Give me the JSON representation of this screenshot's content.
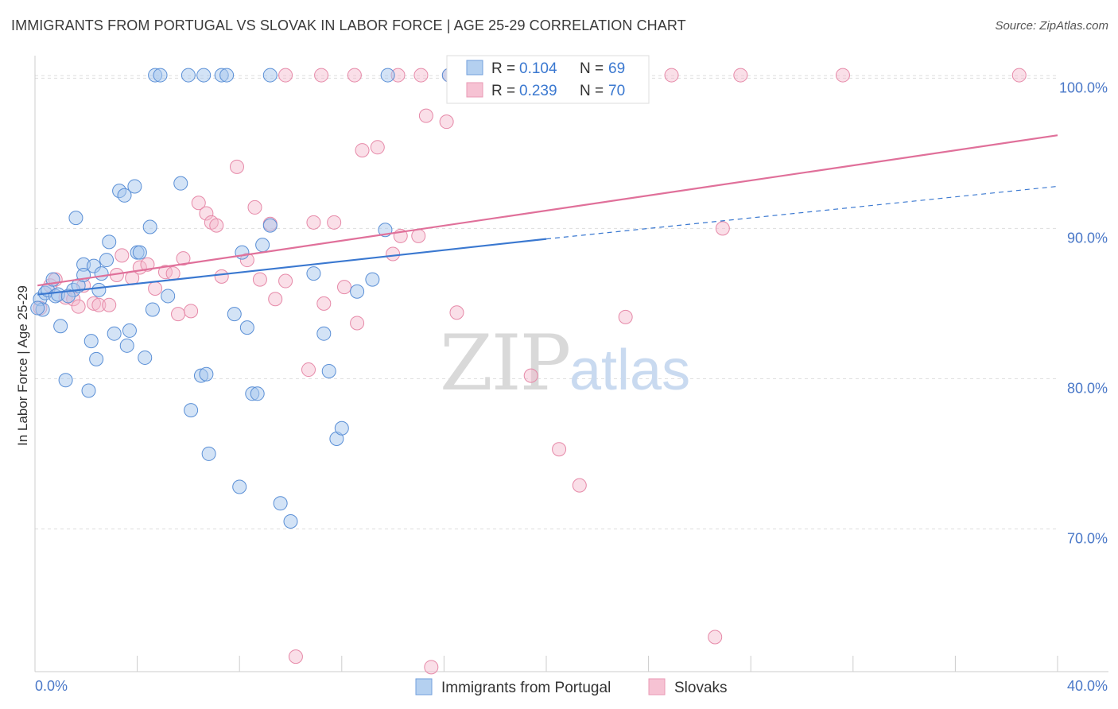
{
  "header": {
    "title": "IMMIGRANTS FROM PORTUGAL VS SLOVAK IN LABOR FORCE | AGE 25-29 CORRELATION CHART",
    "source": "Source: ZipAtlas.com"
  },
  "watermark": {
    "zip": "ZIP",
    "atlas": "atlas"
  },
  "colors": {
    "blue_fill": "#a8c8ee",
    "blue_stroke": "#5a8fd6",
    "blue_line": "#3a78d0",
    "pink_fill": "#f5b8cc",
    "pink_stroke": "#e689a8",
    "pink_line": "#e0709a",
    "grid": "#dddddd",
    "tick_text": "#4a78c8"
  },
  "legend": {
    "r_label": "R =",
    "n_label": "N =",
    "entries": [
      {
        "r": "0.104",
        "n": "69"
      },
      {
        "r": "0.239",
        "n": "70"
      }
    ]
  },
  "chart_data": {
    "type": "scatter",
    "title": "IMMIGRANTS FROM PORTUGAL VS SLOVAK IN LABOR FORCE | AGE 25-29 CORRELATION CHART",
    "xlabel": "",
    "ylabel": "In Labor Force | Age 25-29",
    "xlim": [
      0,
      40
    ],
    "ylim": [
      60.5,
      101.5
    ],
    "x_tick_labels": [
      "0.0%",
      "40.0%"
    ],
    "y_ticks": [
      70,
      80,
      90,
      100
    ],
    "y_tick_labels": [
      "70.0%",
      "80.0%",
      "90.0%",
      "100.0%"
    ],
    "grid": true,
    "legend_position": "top-center",
    "series": [
      {
        "name": "Immigrants from Portugal",
        "r": 0.104,
        "n": 69,
        "trend": {
          "x0": 0.1,
          "y0": 85.6,
          "x1": 20.0,
          "y1": 89.3,
          "dash_to_x": 40.0,
          "dash_to_y": 92.8
        },
        "points": [
          [
            0.2,
            85.3
          ],
          [
            0.3,
            84.6
          ],
          [
            0.4,
            85.7
          ],
          [
            0.5,
            85.9
          ],
          [
            0.7,
            86.6
          ],
          [
            0.8,
            85.5
          ],
          [
            0.9,
            85.6
          ],
          [
            1.0,
            83.5
          ],
          [
            1.2,
            79.9
          ],
          [
            1.5,
            85.9
          ],
          [
            1.3,
            85.5
          ],
          [
            1.6,
            90.7
          ],
          [
            1.7,
            86.2
          ],
          [
            1.9,
            87.6
          ],
          [
            1.9,
            86.9
          ],
          [
            2.1,
            79.2
          ],
          [
            2.2,
            82.5
          ],
          [
            2.3,
            87.5
          ],
          [
            2.4,
            81.3
          ],
          [
            2.5,
            85.9
          ],
          [
            2.6,
            87.0
          ],
          [
            2.8,
            87.9
          ],
          [
            2.9,
            89.1
          ],
          [
            3.1,
            83.0
          ],
          [
            3.3,
            92.5
          ],
          [
            3.5,
            92.2
          ],
          [
            3.6,
            82.2
          ],
          [
            3.7,
            83.2
          ],
          [
            3.9,
            92.8
          ],
          [
            4.0,
            88.4
          ],
          [
            4.1,
            88.4
          ],
          [
            4.3,
            81.4
          ],
          [
            4.5,
            90.1
          ],
          [
            4.6,
            84.6
          ],
          [
            4.7,
            100.2
          ],
          [
            4.9,
            100.2
          ],
          [
            5.2,
            85.5
          ],
          [
            5.7,
            93.0
          ],
          [
            6.1,
            77.9
          ],
          [
            6.0,
            100.2
          ],
          [
            6.5,
            80.2
          ],
          [
            6.7,
            80.3
          ],
          [
            6.8,
            75.0
          ],
          [
            6.6,
            100.2
          ],
          [
            7.3,
            100.2
          ],
          [
            7.5,
            100.2
          ],
          [
            7.8,
            84.3
          ],
          [
            8.0,
            72.8
          ],
          [
            8.1,
            88.4
          ],
          [
            8.3,
            83.4
          ],
          [
            8.5,
            79.0
          ],
          [
            8.7,
            79.0
          ],
          [
            8.9,
            88.9
          ],
          [
            9.2,
            90.2
          ],
          [
            9.2,
            100.2
          ],
          [
            9.6,
            71.7
          ],
          [
            10.0,
            70.5
          ],
          [
            10.9,
            87.0
          ],
          [
            11.3,
            83.0
          ],
          [
            11.5,
            80.5
          ],
          [
            11.8,
            76.0
          ],
          [
            12.0,
            76.7
          ],
          [
            12.6,
            85.8
          ],
          [
            13.2,
            86.6
          ],
          [
            13.7,
            89.9
          ],
          [
            13.8,
            100.2
          ],
          [
            16.2,
            100.2
          ],
          [
            17.0,
            100.2
          ],
          [
            0.1,
            84.7
          ]
        ]
      },
      {
        "name": "Slovaks",
        "r": 0.239,
        "n": 70,
        "trend": {
          "x0": 0.1,
          "y0": 86.2,
          "x1": 40.0,
          "y1": 96.2
        },
        "points": [
          [
            0.2,
            84.7
          ],
          [
            0.6,
            86.2
          ],
          [
            0.8,
            86.6
          ],
          [
            1.2,
            85.4
          ],
          [
            1.5,
            85.3
          ],
          [
            1.7,
            84.8
          ],
          [
            1.9,
            86.2
          ],
          [
            2.3,
            85.0
          ],
          [
            2.5,
            84.9
          ],
          [
            2.9,
            84.9
          ],
          [
            3.2,
            86.9
          ],
          [
            3.4,
            88.2
          ],
          [
            3.8,
            86.7
          ],
          [
            4.1,
            87.4
          ],
          [
            4.4,
            87.6
          ],
          [
            4.7,
            86.0
          ],
          [
            5.1,
            87.1
          ],
          [
            5.4,
            87.0
          ],
          [
            5.6,
            84.3
          ],
          [
            5.8,
            88.0
          ],
          [
            6.1,
            84.5
          ],
          [
            6.4,
            91.7
          ],
          [
            6.7,
            91.0
          ],
          [
            6.9,
            90.4
          ],
          [
            7.1,
            90.2
          ],
          [
            7.3,
            86.8
          ],
          [
            7.9,
            94.1
          ],
          [
            8.3,
            87.9
          ],
          [
            8.6,
            91.4
          ],
          [
            8.8,
            86.6
          ],
          [
            9.2,
            90.3
          ],
          [
            9.4,
            85.3
          ],
          [
            9.8,
            86.5
          ],
          [
            10.2,
            61.5
          ],
          [
            10.7,
            80.6
          ],
          [
            10.9,
            90.4
          ],
          [
            11.3,
            85.0
          ],
          [
            11.7,
            90.4
          ],
          [
            12.1,
            86.1
          ],
          [
            12.6,
            83.7
          ],
          [
            12.8,
            95.2
          ],
          [
            13.4,
            95.4
          ],
          [
            14.0,
            88.3
          ],
          [
            14.3,
            89.5
          ],
          [
            15.0,
            89.5
          ],
          [
            15.3,
            97.5
          ],
          [
            15.5,
            60.8
          ],
          [
            16.1,
            97.1
          ],
          [
            16.5,
            84.4
          ],
          [
            19.4,
            80.2
          ],
          [
            20.5,
            75.3
          ],
          [
            21.3,
            72.9
          ],
          [
            23.1,
            84.1
          ],
          [
            26.9,
            90.0
          ],
          [
            26.6,
            62.8
          ],
          [
            9.8,
            100.2
          ],
          [
            11.2,
            100.2
          ],
          [
            12.5,
            100.2
          ],
          [
            15.1,
            100.2
          ],
          [
            16.6,
            100.2
          ],
          [
            16.2,
            100.2
          ],
          [
            17.4,
            100.2
          ],
          [
            21.4,
            100.2
          ],
          [
            22.1,
            100.2
          ],
          [
            23.2,
            100.2
          ],
          [
            24.9,
            100.2
          ],
          [
            27.6,
            100.2
          ],
          [
            31.6,
            100.2
          ],
          [
            38.5,
            100.2
          ],
          [
            14.2,
            100.2
          ]
        ]
      }
    ]
  },
  "bottom_legend": [
    {
      "label": "Immigrants from Portugal"
    },
    {
      "label": "Slovaks"
    }
  ]
}
